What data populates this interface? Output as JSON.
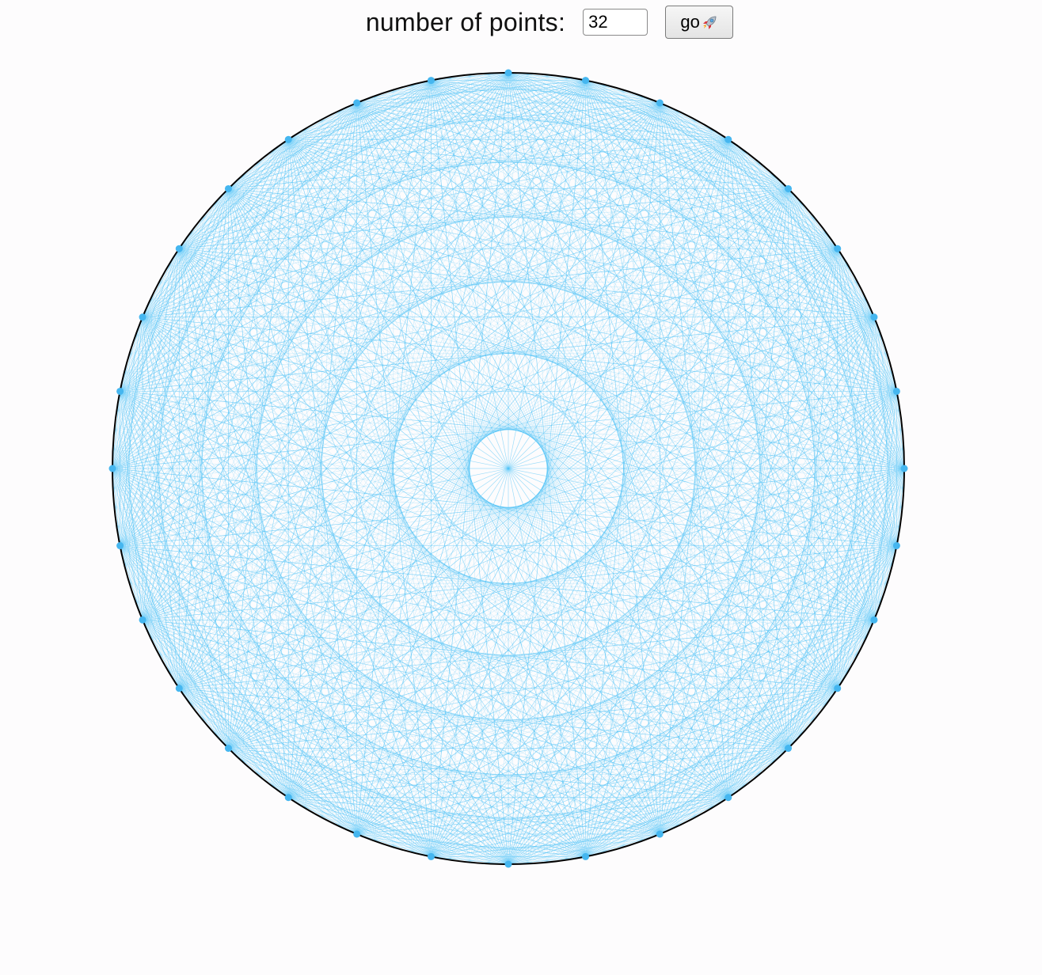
{
  "controls": {
    "label": "number of points:",
    "points_value": "32",
    "go_label": "go",
    "go_icon": "rocket-icon"
  },
  "figure": {
    "point_count": 32,
    "colors": {
      "circle_stroke": "#000000",
      "chord_stroke": "#4fc3f7",
      "point_fill": "#45b6ef",
      "background": "#fdfcfd"
    }
  }
}
